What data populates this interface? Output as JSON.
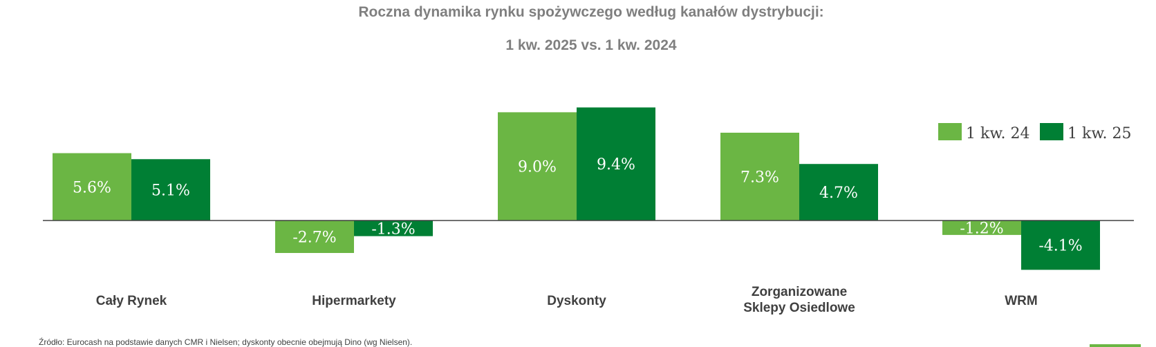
{
  "chart_data": {
    "type": "bar",
    "title": "Roczna dynamika rynku spożywczego według kanałów dystrybucji:",
    "subtitle": "1 kw. 2025 vs. 1 kw. 2024",
    "categories": [
      [
        "Cały Rynek"
      ],
      [
        "Hipermarkety"
      ],
      [
        "Dyskonty"
      ],
      [
        "Zorganizowane",
        "Sklepy Osiedlowe"
      ],
      [
        "WRM"
      ]
    ],
    "series": [
      {
        "name": "1 kw. 24",
        "color": "#6bb644",
        "values": [
          5.6,
          -2.7,
          9.0,
          7.3,
          -1.2
        ],
        "labels": [
          "5.6%",
          "-2.7%",
          "9.0%",
          "7.3%",
          "-1.2%"
        ]
      },
      {
        "name": "1 kw. 25",
        "color": "#007f34",
        "values": [
          5.1,
          -1.3,
          9.4,
          4.7,
          -4.1
        ],
        "labels": [
          "5.1%",
          "-1.3%",
          "9.4%",
          "4.7%",
          "-4.1%"
        ]
      }
    ],
    "ylim": [
      -4.1,
      9.4
    ],
    "legend_position": "right"
  },
  "source_note": "Źródło: Eurocash na podstawie danych CMR i Nielsen; dyskonty obecnie obejmują Dino (wg Nielsen)."
}
